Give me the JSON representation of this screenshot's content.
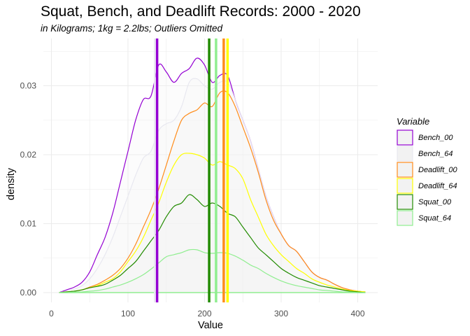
{
  "chart_data": {
    "type": "area",
    "title": "Squat, Bench, and Deadlift Records: 2000 - 2020",
    "subtitle": "in Kilograms; 1kg = 2.2lbs; Outliers Omitted",
    "xlabel": "Value",
    "ylabel": "density",
    "xlim": [
      0,
      410
    ],
    "ylim": [
      0,
      0.036
    ],
    "x_ticks": [
      "0",
      "100",
      "200",
      "300",
      "400"
    ],
    "y_ticks": [
      "0.00",
      "0.01",
      "0.02",
      "0.03"
    ],
    "grid": true,
    "legend_placement": "right",
    "legend_title": "Variable",
    "x": [
      10,
      20,
      30,
      40,
      50,
      60,
      70,
      80,
      90,
      100,
      110,
      120,
      130,
      140,
      150,
      160,
      170,
      180,
      190,
      200,
      210,
      220,
      230,
      240,
      250,
      260,
      270,
      280,
      290,
      300,
      310,
      320,
      330,
      340,
      350,
      360,
      370,
      380,
      390,
      400,
      410
    ],
    "series": [
      {
        "name": "Bench_00",
        "color": "#9400D3",
        "mean": 138,
        "values": [
          0,
          0.0004,
          0.0008,
          0.0015,
          0.003,
          0.0055,
          0.008,
          0.0115,
          0.016,
          0.0205,
          0.025,
          0.028,
          0.0285,
          0.033,
          0.032,
          0.0305,
          0.0318,
          0.0325,
          0.034,
          0.033,
          0.0305,
          0.0315,
          0.0315,
          0.028,
          0.025,
          0.022,
          0.018,
          0.014,
          0.011,
          0.0085,
          0.0068,
          0.006,
          0.0045,
          0.003,
          0.0022,
          0.0018,
          0.0012,
          0.0007,
          0.0004,
          0.0002,
          0.0001
        ]
      },
      {
        "name": "Bench_64",
        "color": "#e8e8f0",
        "mean": 135,
        "values": [
          0,
          0.0002,
          0.0005,
          0.001,
          0.002,
          0.0035,
          0.0055,
          0.008,
          0.011,
          0.014,
          0.017,
          0.0195,
          0.0205,
          0.0235,
          0.0245,
          0.025,
          0.027,
          0.0305,
          0.031,
          0.03,
          0.0295,
          0.0305,
          0.0305,
          0.028,
          0.025,
          0.022,
          0.018,
          0.014,
          0.011,
          0.0085,
          0.0068,
          0.006,
          0.0045,
          0.003,
          0.0022,
          0.0018,
          0.0012,
          0.0007,
          0.0004,
          0.0002,
          0.0001
        ]
      },
      {
        "name": "Deadlift_00",
        "color": "#FF8C1A",
        "mean": 225,
        "values": [
          0,
          0.0001,
          0.0002,
          0.0004,
          0.0008,
          0.0012,
          0.0018,
          0.0025,
          0.0035,
          0.005,
          0.007,
          0.0095,
          0.012,
          0.015,
          0.0185,
          0.022,
          0.025,
          0.026,
          0.0265,
          0.0275,
          0.027,
          0.029,
          0.029,
          0.027,
          0.024,
          0.021,
          0.0175,
          0.0135,
          0.0105,
          0.0085,
          0.0068,
          0.006,
          0.0045,
          0.003,
          0.0022,
          0.0018,
          0.0012,
          0.0007,
          0.0004,
          0.0002,
          0.0001
        ]
      },
      {
        "name": "Deadlift_64",
        "color": "#FFFF00",
        "mean": 230,
        "values": [
          0,
          0.0001,
          0.0002,
          0.0004,
          0.0007,
          0.001,
          0.0015,
          0.002,
          0.003,
          0.0045,
          0.006,
          0.008,
          0.0105,
          0.013,
          0.016,
          0.0185,
          0.02,
          0.0202,
          0.02,
          0.0195,
          0.0185,
          0.019,
          0.0185,
          0.018,
          0.0165,
          0.0135,
          0.011,
          0.0085,
          0.0068,
          0.0055,
          0.0045,
          0.0035,
          0.0028,
          0.002,
          0.0015,
          0.0011,
          0.0008,
          0.0005,
          0.0003,
          0.0002,
          0.0001
        ]
      },
      {
        "name": "Squat_00",
        "color": "#228B00",
        "mean": 206,
        "values": [
          0,
          0.0001,
          0.0002,
          0.0004,
          0.0007,
          0.0009,
          0.0012,
          0.0018,
          0.0025,
          0.0035,
          0.0045,
          0.006,
          0.0075,
          0.009,
          0.011,
          0.0125,
          0.013,
          0.0142,
          0.0135,
          0.0125,
          0.013,
          0.0125,
          0.0115,
          0.011,
          0.0095,
          0.008,
          0.0065,
          0.0055,
          0.0045,
          0.0035,
          0.0028,
          0.0022,
          0.0018,
          0.0014,
          0.001,
          0.0008,
          0.0006,
          0.0004,
          0.0002,
          0.0001,
          0
        ]
      },
      {
        "name": "Squat_64",
        "color": "#90EE90",
        "mean": 215,
        "values": [
          0,
          0,
          0.0001,
          0.0001,
          0.0002,
          0.0003,
          0.0005,
          0.0008,
          0.0011,
          0.0015,
          0.002,
          0.0026,
          0.0034,
          0.0043,
          0.0052,
          0.0055,
          0.0058,
          0.0062,
          0.0062,
          0.0058,
          0.0057,
          0.0058,
          0.0057,
          0.0053,
          0.0047,
          0.004,
          0.0035,
          0.0028,
          0.0022,
          0.0017,
          0.0013,
          0.001,
          0.0008,
          0.0006,
          0.0004,
          0.0003,
          0.0002,
          0.0001,
          0.0001,
          0,
          0
        ]
      }
    ]
  }
}
